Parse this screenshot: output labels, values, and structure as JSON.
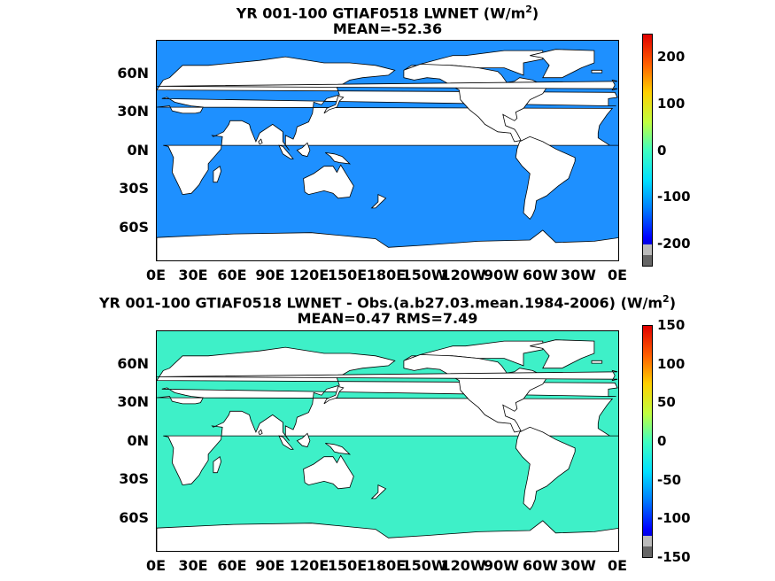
{
  "panels": [
    {
      "title_line1_main": "YR 001-100 GTIAF0518  LWNET (W/m",
      "title_line1_sup": "2",
      "title_line1_end": ")",
      "title_line2": "MEAN=-52.36",
      "colorbar_ticks": [
        "200",
        "100",
        "0",
        "-100",
        "-200"
      ],
      "colorbar_range": [
        -250,
        250
      ],
      "ocean_color": "#1e90ff"
    },
    {
      "title_line1_main": "YR 001-100 GTIAF0518 LWNET - Obs.(a.b27.03.mean.1984-2006) (W/m",
      "title_line1_sup": "2",
      "title_line1_end": ")",
      "title_line2": "MEAN=0.47 RMS=7.49",
      "colorbar_ticks": [
        "150",
        "100",
        "50",
        "0",
        "-50",
        "-100",
        "-150"
      ],
      "colorbar_range": [
        -150,
        150
      ],
      "ocean_color": "#3ef0c8"
    }
  ],
  "lat_labels": [
    "60N",
    "30N",
    "0N",
    "30S",
    "60S"
  ],
  "lon_labels": [
    "0E",
    "30E",
    "60E",
    "90E",
    "120E",
    "150E",
    "180E",
    "150W",
    "120W",
    "90W",
    "60W",
    "30W",
    "0E"
  ],
  "colors": {
    "land": "#ffffff",
    "coast": "#000000",
    "colormap": [
      "#000080",
      "#0000ff",
      "#0080ff",
      "#00e0ff",
      "#40ffc0",
      "#c0ff40",
      "#ffd000",
      "#ff6000",
      "#e00000"
    ]
  }
}
